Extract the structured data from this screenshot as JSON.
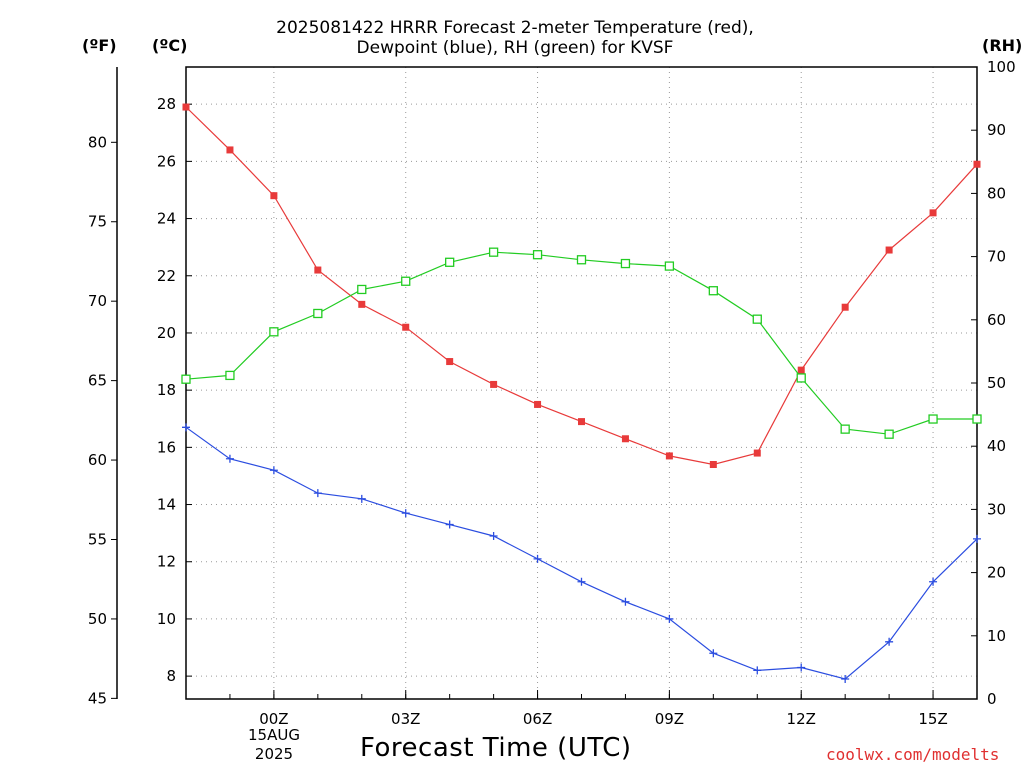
{
  "title": {
    "line1": "2025081422 HRRR Forecast 2-meter Temperature (red),",
    "line2": "Dewpoint (blue), RH (green) for KVSF"
  },
  "units": {
    "fahrenheit": "(ºF)",
    "celsius": "(ºC)",
    "rh": "(RH)"
  },
  "xlabel": "Forecast Time (UTC)",
  "credit": "coolwx.com/modelts",
  "date_label": {
    "day": "15AUG",
    "year": "2025"
  },
  "colors": {
    "temperature": "#e83a3a",
    "dewpoint": "#2b4de0",
    "rh": "#22cc22",
    "grid": "#9a9a9a"
  },
  "chart_data": {
    "type": "line",
    "title": "2025081422 HRRR Forecast 2-meter Temperature (red), Dewpoint (blue), RH (green) for KVSF",
    "xlabel": "Forecast Time (UTC)",
    "x": [
      -2,
      -1,
      0,
      1,
      2,
      3,
      4,
      5,
      6,
      7,
      8,
      9,
      10,
      11,
      12,
      13,
      14,
      15,
      16
    ],
    "x_tick_values": [
      0,
      3,
      6,
      9,
      12,
      15
    ],
    "x_tick_labels": [
      "00Z",
      "03Z",
      "06Z",
      "09Z",
      "12Z",
      "15Z"
    ],
    "xlim": [
      -2,
      16
    ],
    "ylim_c": [
      7.2,
      29.3
    ],
    "y_ticks_c": [
      8,
      10,
      12,
      14,
      16,
      18,
      20,
      22,
      24,
      26,
      28
    ],
    "y_ticks_f": [
      45,
      50,
      55,
      60,
      65,
      70,
      75,
      80
    ],
    "ylim_rh": [
      0,
      100
    ],
    "y_ticks_rh": [
      0,
      10,
      20,
      30,
      40,
      50,
      60,
      70,
      80,
      90,
      100
    ],
    "grid": true,
    "series": [
      {
        "name": "Temperature",
        "axis": "celsius",
        "marker": "filled-square",
        "values": [
          27.9,
          26.4,
          24.8,
          22.2,
          21.0,
          20.2,
          19.0,
          18.2,
          17.5,
          16.9,
          16.3,
          15.7,
          15.4,
          15.8,
          18.7,
          20.9,
          22.9,
          24.2,
          25.9
        ]
      },
      {
        "name": "Dewpoint",
        "axis": "celsius",
        "marker": "plus",
        "values": [
          16.7,
          15.6,
          15.2,
          14.4,
          14.2,
          13.7,
          13.3,
          12.9,
          12.1,
          11.3,
          10.6,
          10.0,
          8.8,
          8.2,
          8.3,
          7.9,
          9.2,
          11.3,
          12.8
        ]
      },
      {
        "name": "RH",
        "axis": "rh",
        "marker": "open-square",
        "values": [
          50.6,
          51.2,
          58.1,
          61.0,
          64.8,
          66.1,
          69.1,
          70.7,
          70.3,
          69.5,
          68.9,
          68.5,
          64.6,
          60.1,
          50.8,
          42.7,
          41.9,
          44.3,
          44.3
        ]
      }
    ]
  }
}
